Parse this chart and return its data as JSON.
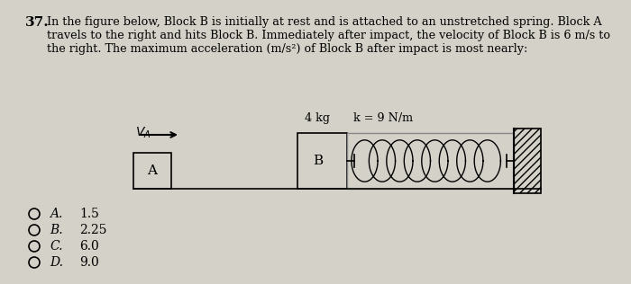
{
  "question_number": "37.",
  "question_text_line1": "In the figure below, Block B is initially at rest and is attached to an unstretched spring. Block A",
  "question_text_line2": "travels to the right and hits Block B. Immediately after impact, the velocity of Block B is 6 m/s to",
  "question_text_line3": "the right. The maximum acceleration (m/s²) of Block B after impact is most nearly:",
  "bg_color": "#d4d1c8",
  "block_A_label": "A",
  "block_B_label": "B",
  "mass_label": "4 kg",
  "spring_label": "k = 9 N/m",
  "choices": [
    [
      "A.",
      "1.5"
    ],
    [
      "B.",
      "2.25"
    ],
    [
      "C.",
      "6.0"
    ],
    [
      "D.",
      "9.0"
    ]
  ]
}
